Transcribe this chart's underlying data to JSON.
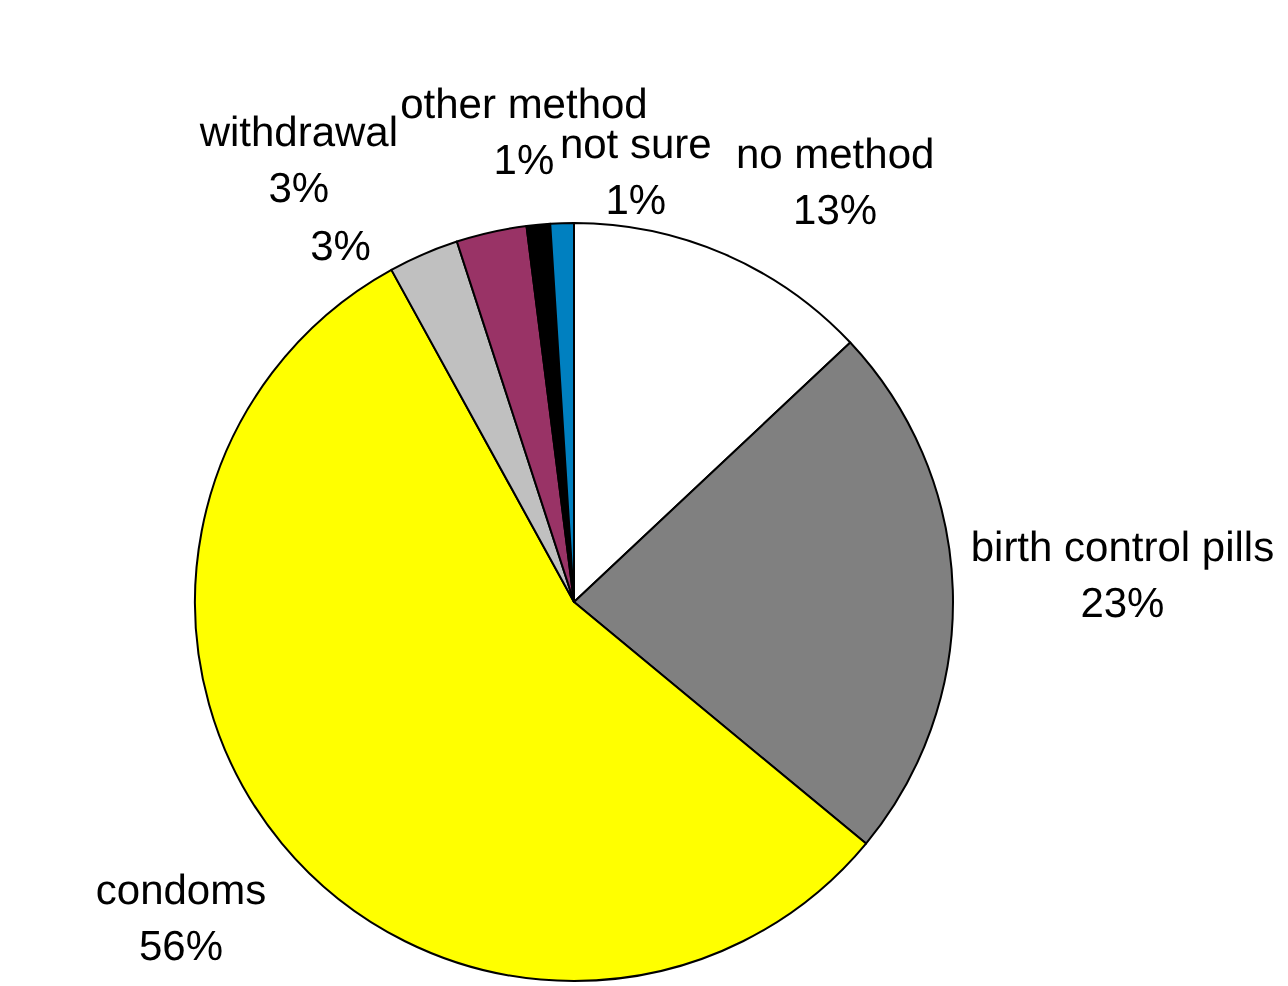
{
  "chart_data": {
    "type": "pie",
    "categories": [
      "no method",
      "birth control pills",
      "condoms",
      null,
      "withdrawal",
      "other method",
      "not sure"
    ],
    "values": [
      13,
      23,
      56,
      3,
      3,
      1,
      1
    ],
    "colors": [
      "#ffffff",
      "#808080",
      "#ffff00",
      "#c0c0c0",
      "#993366",
      "#000000",
      "#0080c0"
    ],
    "value_labels": [
      "13%",
      "23%",
      "56%",
      "3%",
      "3%",
      "1%",
      "1%"
    ],
    "legend": false
  }
}
